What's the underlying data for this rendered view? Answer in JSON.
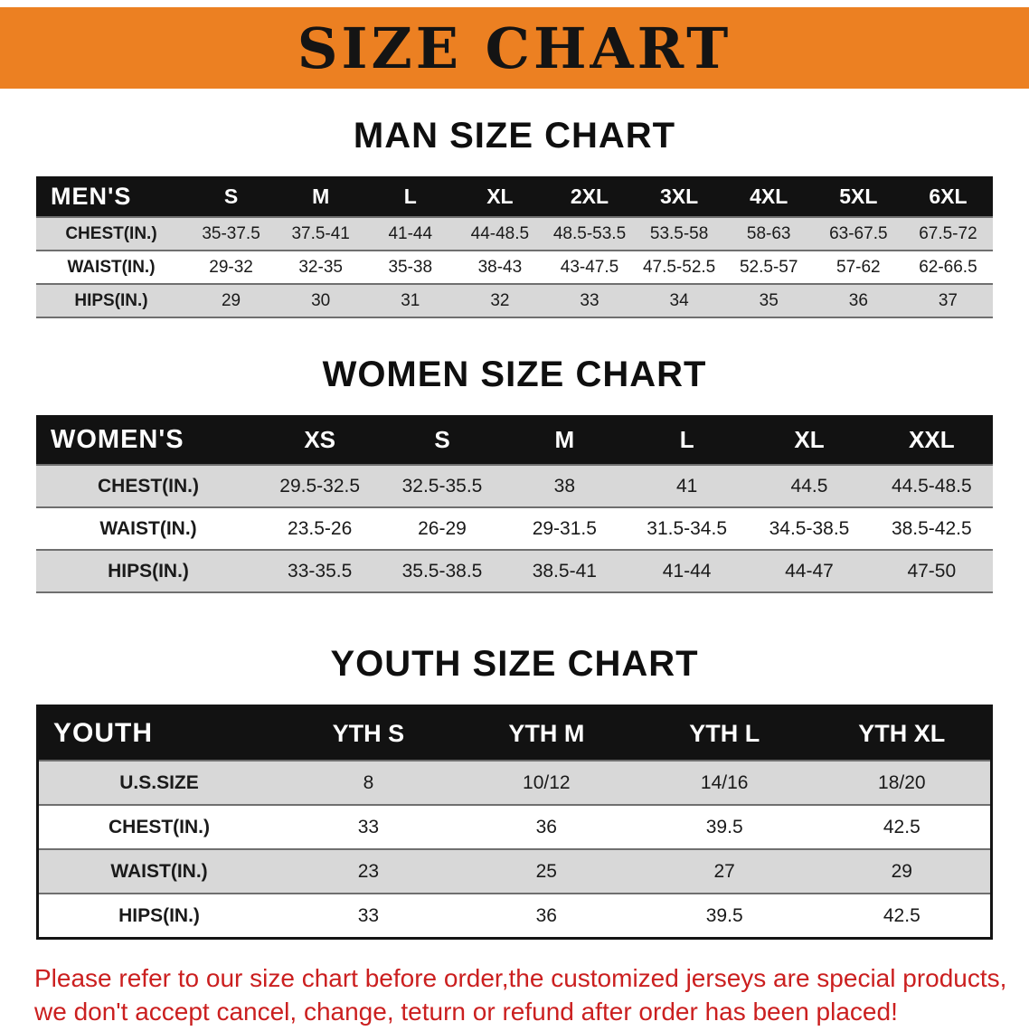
{
  "banner": {
    "title": "SIZE CHART"
  },
  "colors": {
    "banner_orange": "#ec8022",
    "table_header_black": "#121212",
    "row_gray": "#d8d8d8",
    "disclaimer_red": "#cb1f1f"
  },
  "sections": [
    {
      "heading": "MAN SIZE CHART",
      "table": {
        "header": [
          "MEN'S",
          "S",
          "M",
          "L",
          "XL",
          "2XL",
          "3XL",
          "4XL",
          "5XL",
          "6XL"
        ],
        "rows": [
          {
            "label": "CHEST(IN.)",
            "values": [
              "35-37.5",
              "37.5-41",
              "41-44",
              "44-48.5",
              "48.5-53.5",
              "53.5-58",
              "58-63",
              "63-67.5",
              "67.5-72"
            ]
          },
          {
            "label": "WAIST(IN.)",
            "values": [
              "29-32",
              "32-35",
              "35-38",
              "38-43",
              "43-47.5",
              "47.5-52.5",
              "52.5-57",
              "57-62",
              "62-66.5"
            ]
          },
          {
            "label": "HIPS(IN.)",
            "values": [
              "29",
              "30",
              "31",
              "32",
              "33",
              "34",
              "35",
              "36",
              "37"
            ]
          }
        ]
      }
    },
    {
      "heading": "WOMEN SIZE CHART",
      "table": {
        "header": [
          "WOMEN'S",
          "XS",
          "S",
          "M",
          "L",
          "XL",
          "XXL"
        ],
        "rows": [
          {
            "label": "CHEST(IN.)",
            "values": [
              "29.5-32.5",
              "32.5-35.5",
              "38",
              "41",
              "44.5",
              "44.5-48.5"
            ]
          },
          {
            "label": "WAIST(IN.)",
            "values": [
              "23.5-26",
              "26-29",
              "29-31.5",
              "31.5-34.5",
              "34.5-38.5",
              "38.5-42.5"
            ]
          },
          {
            "label": "HIPS(IN.)",
            "values": [
              "33-35.5",
              "35.5-38.5",
              "38.5-41",
              "41-44",
              "44-47",
              "47-50"
            ]
          }
        ]
      }
    },
    {
      "heading": "YOUTH SIZE CHART",
      "table": {
        "header": [
          "YOUTH",
          "YTH S",
          "YTH M",
          "YTH L",
          "YTH XL"
        ],
        "rows": [
          {
            "label": "U.S.SIZE",
            "values": [
              "8",
              "10/12",
              "14/16",
              "18/20"
            ]
          },
          {
            "label": "CHEST(IN.)",
            "values": [
              "33",
              "36",
              "39.5",
              "42.5"
            ]
          },
          {
            "label": "WAIST(IN.)",
            "values": [
              "23",
              "25",
              "27",
              "29"
            ]
          },
          {
            "label": "HIPS(IN.)",
            "values": [
              "33",
              "36",
              "39.5",
              "42.5"
            ]
          }
        ]
      }
    }
  ],
  "footer": {
    "line1": "Please refer to our size chart before order,the customized jerseys are special products,",
    "line2": "we don't accept cancel, change, teturn or refund after order has been placed!"
  }
}
